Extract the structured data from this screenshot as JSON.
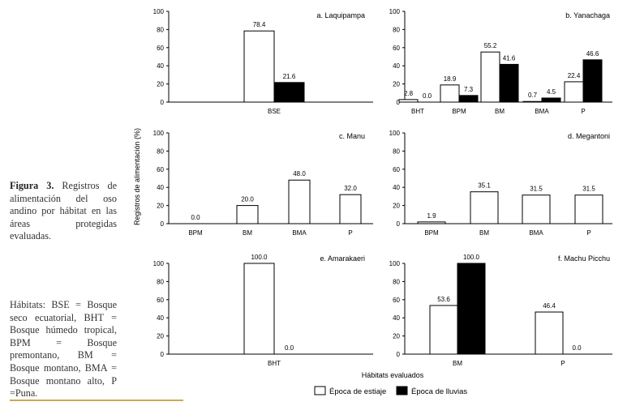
{
  "caption": {
    "label": "Figura 3.",
    "text": "Registros de alimentación del oso andino por hábitat en las áreas protegidas evaluadas."
  },
  "habitat_note": "Hábitats: BSE = Bosque seco ecuatorial, BHT = Bosque húmedo tropical, BPM = Bosque premontano, BM = Bosque montano, BMA = Bosque montano alto, P =Puna.",
  "figure": {
    "ylabel": "Registros de alimentación (%)",
    "xlabel": "Hábitats evaluados",
    "legend": [
      {
        "label": "Época de estiaje",
        "color": "#ffffff"
      },
      {
        "label": "Época de lluvias",
        "color": "#000000"
      }
    ]
  },
  "chart_data": [
    {
      "type": "bar",
      "title": "a. Laquipampa",
      "categories": [
        "BSE"
      ],
      "series": [
        {
          "name": "Época de estiaje",
          "values": [
            78.4
          ]
        },
        {
          "name": "Época de lluvias",
          "values": [
            21.6
          ]
        }
      ],
      "yticks": [
        0,
        20,
        40,
        60,
        80,
        100
      ],
      "ylim": [
        0,
        100
      ]
    },
    {
      "type": "bar",
      "title": "b. Yanachaga",
      "categories": [
        "BHT",
        "BPM",
        "BM",
        "BMA",
        "P"
      ],
      "series": [
        {
          "name": "Época de estiaje",
          "values": [
            2.8,
            18.9,
            55.2,
            0.7,
            22.4
          ]
        },
        {
          "name": "Época de lluvias",
          "values": [
            0.0,
            7.3,
            41.6,
            4.5,
            46.6
          ]
        }
      ],
      "yticks": [
        0,
        20,
        40,
        60,
        80,
        100
      ],
      "ylim": [
        0,
        100
      ]
    },
    {
      "type": "bar",
      "title": "c. Manu",
      "categories": [
        "BPM",
        "BM",
        "BMA",
        "P"
      ],
      "series": [
        {
          "name": "Época de estiaje",
          "values": [
            0.0,
            20.0,
            48.0,
            32.0
          ]
        }
      ],
      "yticks": [
        0,
        20,
        40,
        60,
        80,
        100
      ],
      "ylim": [
        0,
        100
      ]
    },
    {
      "type": "bar",
      "title": "d. Megantoni",
      "categories": [
        "BPM",
        "BM",
        "BMA",
        "P"
      ],
      "series": [
        {
          "name": "Época de estiaje",
          "values": [
            1.9,
            35.1,
            31.5,
            31.5
          ]
        }
      ],
      "yticks": [
        0,
        20,
        40,
        60,
        80,
        100
      ],
      "ylim": [
        0,
        100
      ]
    },
    {
      "type": "bar",
      "title": "e. Amarakaeri",
      "categories": [
        "BHT"
      ],
      "series": [
        {
          "name": "Época de estiaje",
          "values": [
            100.0
          ]
        },
        {
          "name": "Época de lluvias",
          "values": [
            0.0
          ]
        }
      ],
      "yticks": [
        0,
        20,
        40,
        60,
        80,
        100
      ],
      "ylim": [
        0,
        100
      ]
    },
    {
      "type": "bar",
      "title": "f. Machu Picchu",
      "categories": [
        "BM",
        "P"
      ],
      "series": [
        {
          "name": "Época de estiaje",
          "values": [
            53.6,
            46.4
          ]
        },
        {
          "name": "Época de lluvias",
          "values": [
            100.0,
            0.0
          ]
        }
      ],
      "yticks": [
        0,
        20,
        40,
        60,
        80,
        100
      ],
      "ylim": [
        0,
        100
      ]
    }
  ]
}
